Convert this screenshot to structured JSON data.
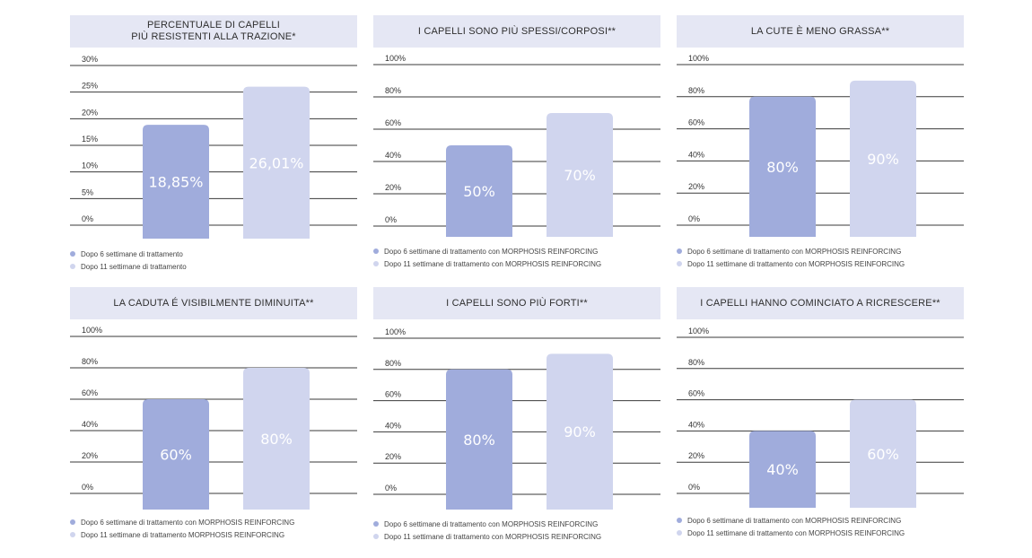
{
  "colors": {
    "series1": "#a0acdc",
    "series2": "#d0d5ee",
    "header_bg": "#e5e7f4",
    "grid": "#3a3a3a"
  },
  "chart_data": [
    {
      "type": "bar",
      "title": "PERCENTUALE DI CAPELLI\nPIÙ RESISTENTI ALLA TRAZIONE*",
      "categories": [
        "Dopo 6 settimane di trattamento",
        "Dopo 11 settimane di trattamento"
      ],
      "values": [
        18.85,
        26.01
      ],
      "value_labels": [
        "18,85%",
        "26,01%"
      ],
      "ylim": [
        0,
        30
      ],
      "yticks": [
        "0%",
        "5%",
        "10%",
        "15%",
        "20%",
        "25%",
        "30%"
      ],
      "legend": [
        "Dopo 6 settimane di trattamento",
        "Dopo 11 settimane di trattamento"
      ],
      "legend_position": "bottom-left",
      "grid": true
    },
    {
      "type": "bar",
      "title": "I CAPELLI SONO PIÙ SPESSI/CORPOSI**",
      "categories": [
        "Dopo 6 settimane di trattamento con MORPHOSIS REINFORCING",
        "Dopo 11 settimane di trattamento con MORPHOSIS REINFORCING"
      ],
      "values": [
        50,
        70
      ],
      "value_labels": [
        "50%",
        "70%"
      ],
      "ylim": [
        0,
        100
      ],
      "yticks": [
        "0%",
        "20%",
        "40%",
        "60%",
        "80%",
        "100%"
      ],
      "legend": [
        "Dopo 6 settimane di trattamento con MORPHOSIS REINFORCING",
        "Dopo 11 settimane di trattamento con MORPHOSIS REINFORCING"
      ],
      "legend_position": "bottom-left",
      "grid": true
    },
    {
      "type": "bar",
      "title": "LA CUTE È MENO GRASSA**",
      "categories": [
        "Dopo 6 settimane di trattamento con MORPHOSIS REINFORCING",
        "Dopo 11 settimane di trattamento con MORPHOSIS REINFORCING"
      ],
      "values": [
        80,
        90
      ],
      "value_labels": [
        "80%",
        "90%"
      ],
      "ylim": [
        0,
        100
      ],
      "yticks": [
        "0%",
        "20%",
        "40%",
        "60%",
        "80%",
        "100%"
      ],
      "legend": [
        "Dopo 6 settimane di trattamento con MORPHOSIS REINFORCING",
        "Dopo 11 settimane di trattamento con MORPHOSIS REINFORCING"
      ],
      "legend_position": "bottom-left",
      "grid": true
    },
    {
      "type": "bar",
      "title": "LA CADUTA É VISIBILMENTE DIMINUITA**",
      "categories": [
        "Dopo 6 settimane di trattamento con MORPHOSIS REINFORCING",
        "Dopo 11 settimane di trattamento MORPHOSIS REINFORCING"
      ],
      "values": [
        60,
        80
      ],
      "value_labels": [
        "60%",
        "80%"
      ],
      "ylim": [
        0,
        100
      ],
      "yticks": [
        "0%",
        "20%",
        "40%",
        "60%",
        "80%",
        "100%"
      ],
      "legend": [
        "Dopo 6 settimane di trattamento con MORPHOSIS REINFORCING",
        "Dopo 11 settimane di trattamento MORPHOSIS REINFORCING"
      ],
      "legend_position": "bottom-left",
      "grid": true
    },
    {
      "type": "bar",
      "title": "I CAPELLI SONO PIÙ FORTI**",
      "categories": [
        "Dopo 6 settimane di trattamento con MORPHOSIS REINFORCING",
        "Dopo 11 settimane di trattamento con MORPHOSIS REINFORCING"
      ],
      "values": [
        80,
        90
      ],
      "value_labels": [
        "80%",
        "90%"
      ],
      "ylim": [
        0,
        100
      ],
      "yticks": [
        "0%",
        "20%",
        "40%",
        "60%",
        "80%",
        "100%"
      ],
      "legend": [
        "Dopo 6 settimane di trattamento con MORPHOSIS REINFORCING",
        "Dopo 11 settimane di trattamento con MORPHOSIS REINFORCING"
      ],
      "legend_position": "bottom-left",
      "grid": true
    },
    {
      "type": "bar",
      "title": "I CAPELLI HANNO COMINCIATO A RICRESCERE**",
      "categories": [
        "Dopo 6 settimane di trattamento con MORPHOSIS REINFORCING",
        "Dopo 11 settimane di trattamento con MORPHOSIS REINFORCING"
      ],
      "values": [
        40,
        60
      ],
      "value_labels": [
        "40%",
        "60%"
      ],
      "ylim": [
        0,
        100
      ],
      "yticks": [
        "0%",
        "20%",
        "40%",
        "60%",
        "80%",
        "100%"
      ],
      "legend": [
        "Dopo 6 settimane di trattamento con MORPHOSIS REINFORCING",
        "Dopo 11 settimane di trattamento con MORPHOSIS REINFORCING"
      ],
      "legend_position": "bottom-left",
      "grid": true
    }
  ]
}
